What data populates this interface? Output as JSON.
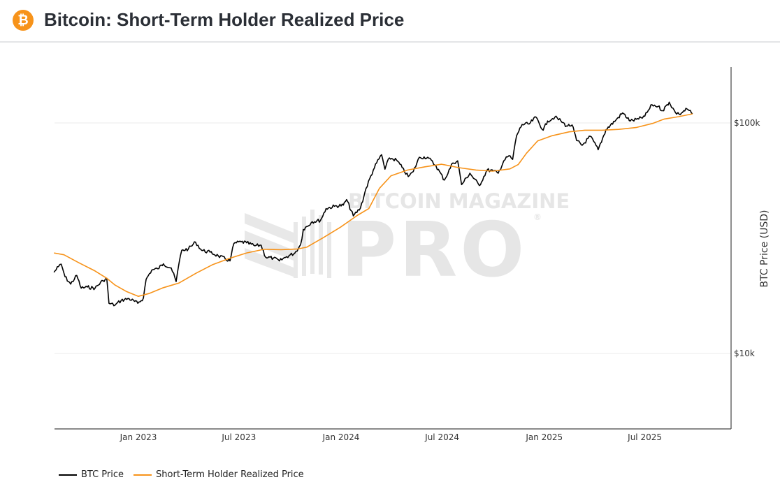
{
  "header": {
    "title": "Bitcoin: Short-Term Holder Realized Price",
    "logo_glyph": "₿",
    "logo_icon": "bitcoin-logo-icon"
  },
  "watermark": {
    "line1": "BITCOIN MAGAZINE",
    "line2": "PRO",
    "registered": "®"
  },
  "colors": {
    "btc_price": "#000000",
    "sth_realized": "#f7931a",
    "accent": "#f7931a",
    "title": "#2b2f36"
  },
  "chart_data": {
    "type": "line",
    "title": "Bitcoin: Short-Term Holder Realized Price",
    "xlabel": "",
    "ylabel": "BTC Price (USD)",
    "yscale": "log",
    "ylim": [
      4700,
      175000
    ],
    "xlim": [
      "2022-08-02",
      "2025-11-15"
    ],
    "grid": true,
    "x_ticks": [
      {
        "date": "2023-01-01",
        "label": "Jan 2023"
      },
      {
        "date": "2023-07-01",
        "label": "Jul 2023"
      },
      {
        "date": "2024-01-01",
        "label": "Jan 2024"
      },
      {
        "date": "2024-07-01",
        "label": "Jul 2024"
      },
      {
        "date": "2025-01-01",
        "label": "Jan 2025"
      },
      {
        "date": "2025-07-01",
        "label": "Jul 2025"
      }
    ],
    "y_ticks": [
      {
        "value": 100000,
        "label": "$100k"
      },
      {
        "value": 10000,
        "label": "$10k"
      }
    ],
    "y_axis_position": "right",
    "legend_position": "bottom-left",
    "series": [
      {
        "name": "BTC Price",
        "color": "#000000",
        "points": [
          [
            "2022-08-02",
            22500
          ],
          [
            "2022-08-10",
            23800
          ],
          [
            "2022-08-15",
            24400
          ],
          [
            "2022-08-22",
            21500
          ],
          [
            "2022-09-01",
            20000
          ],
          [
            "2022-09-12",
            21800
          ],
          [
            "2022-09-20",
            19200
          ],
          [
            "2022-10-01",
            19400
          ],
          [
            "2022-10-15",
            19200
          ],
          [
            "2022-10-29",
            20700
          ],
          [
            "2022-11-05",
            21200
          ],
          [
            "2022-11-09",
            16500
          ],
          [
            "2022-11-20",
            16200
          ],
          [
            "2022-12-01",
            17000
          ],
          [
            "2022-12-15",
            17300
          ],
          [
            "2022-12-31",
            16500
          ],
          [
            "2023-01-10",
            17400
          ],
          [
            "2023-01-15",
            21000
          ],
          [
            "2023-01-25",
            23000
          ],
          [
            "2023-02-05",
            23300
          ],
          [
            "2023-02-15",
            24500
          ],
          [
            "2023-03-01",
            23500
          ],
          [
            "2023-03-10",
            20500
          ],
          [
            "2023-03-15",
            24500
          ],
          [
            "2023-03-20",
            28000
          ],
          [
            "2023-04-01",
            28400
          ],
          [
            "2023-04-14",
            30400
          ],
          [
            "2023-04-25",
            28000
          ],
          [
            "2023-05-10",
            27500
          ],
          [
            "2023-05-25",
            26500
          ],
          [
            "2023-06-15",
            25200
          ],
          [
            "2023-06-22",
            30000
          ],
          [
            "2023-07-05",
            30500
          ],
          [
            "2023-07-15",
            30200
          ],
          [
            "2023-07-30",
            29300
          ],
          [
            "2023-08-10",
            29500
          ],
          [
            "2023-08-18",
            26200
          ],
          [
            "2023-09-01",
            25900
          ],
          [
            "2023-09-12",
            25200
          ],
          [
            "2023-09-25",
            26300
          ],
          [
            "2023-10-10",
            27300
          ],
          [
            "2023-10-20",
            29600
          ],
          [
            "2023-10-25",
            34500
          ],
          [
            "2023-11-10",
            37300
          ],
          [
            "2023-11-25",
            37800
          ],
          [
            "2023-12-05",
            42500
          ],
          [
            "2023-12-20",
            43500
          ],
          [
            "2024-01-05",
            44000
          ],
          [
            "2024-01-11",
            46500
          ],
          [
            "2024-01-23",
            39500
          ],
          [
            "2024-02-05",
            42800
          ],
          [
            "2024-02-15",
            52000
          ],
          [
            "2024-02-28",
            62500
          ],
          [
            "2024-03-05",
            67000
          ],
          [
            "2024-03-14",
            72800
          ],
          [
            "2024-03-20",
            63000
          ],
          [
            "2024-03-28",
            70500
          ],
          [
            "2024-04-10",
            69000
          ],
          [
            "2024-04-20",
            64000
          ],
          [
            "2024-05-01",
            58500
          ],
          [
            "2024-05-10",
            61500
          ],
          [
            "2024-05-21",
            71000
          ],
          [
            "2024-06-05",
            71000
          ],
          [
            "2024-06-20",
            65000
          ],
          [
            "2024-07-05",
            56500
          ],
          [
            "2024-07-20",
            67000
          ],
          [
            "2024-07-29",
            68500
          ],
          [
            "2024-08-05",
            54000
          ],
          [
            "2024-08-20",
            60500
          ],
          [
            "2024-09-06",
            53500
          ],
          [
            "2024-09-20",
            62500
          ],
          [
            "2024-10-01",
            62000
          ],
          [
            "2024-10-10",
            60500
          ],
          [
            "2024-10-20",
            68500
          ],
          [
            "2024-10-29",
            72000
          ],
          [
            "2024-11-05",
            69500
          ],
          [
            "2024-11-12",
            88000
          ],
          [
            "2024-11-22",
            98500
          ],
          [
            "2024-12-05",
            99000
          ],
          [
            "2024-12-17",
            106000
          ],
          [
            "2024-12-30",
            93000
          ],
          [
            "2025-01-07",
            102000
          ],
          [
            "2025-01-20",
            106000
          ],
          [
            "2025-01-31",
            102000
          ],
          [
            "2025-02-10",
            97000
          ],
          [
            "2025-02-20",
            98000
          ],
          [
            "2025-02-28",
            84000
          ],
          [
            "2025-03-10",
            80000
          ],
          [
            "2025-03-25",
            87500
          ],
          [
            "2025-04-08",
            76500
          ],
          [
            "2025-04-22",
            93500
          ],
          [
            "2025-05-10",
            103000
          ],
          [
            "2025-05-22",
            110500
          ],
          [
            "2025-06-05",
            102000
          ],
          [
            "2025-06-20",
            104000
          ],
          [
            "2025-07-01",
            107000
          ],
          [
            "2025-07-14",
            120000
          ],
          [
            "2025-07-25",
            118000
          ],
          [
            "2025-08-02",
            113000
          ],
          [
            "2025-08-14",
            123000
          ],
          [
            "2025-08-25",
            111000
          ],
          [
            "2025-09-01",
            109000
          ],
          [
            "2025-09-15",
            115000
          ],
          [
            "2025-09-25",
            109500
          ]
        ]
      },
      {
        "name": "Short-Term Holder Realized Price",
        "color": "#f7931a",
        "points": [
          [
            "2022-08-02",
            27300
          ],
          [
            "2022-08-20",
            26800
          ],
          [
            "2022-09-15",
            24800
          ],
          [
            "2022-10-15",
            22800
          ],
          [
            "2022-11-05",
            21200
          ],
          [
            "2022-11-20",
            19800
          ],
          [
            "2022-12-10",
            18600
          ],
          [
            "2023-01-01",
            17700
          ],
          [
            "2023-01-20",
            18200
          ],
          [
            "2023-02-15",
            19300
          ],
          [
            "2023-03-15",
            20200
          ],
          [
            "2023-04-15",
            22300
          ],
          [
            "2023-05-15",
            24300
          ],
          [
            "2023-06-15",
            25900
          ],
          [
            "2023-07-15",
            27300
          ],
          [
            "2023-08-15",
            28300
          ],
          [
            "2023-09-15",
            28200
          ],
          [
            "2023-10-15",
            28400
          ],
          [
            "2023-10-31",
            28900
          ],
          [
            "2023-11-30",
            31800
          ],
          [
            "2023-12-31",
            35300
          ],
          [
            "2024-01-31",
            39800
          ],
          [
            "2024-02-20",
            42500
          ],
          [
            "2024-03-10",
            52000
          ],
          [
            "2024-03-31",
            59000
          ],
          [
            "2024-04-30",
            62500
          ],
          [
            "2024-05-31",
            64500
          ],
          [
            "2024-06-30",
            66200
          ],
          [
            "2024-07-31",
            64000
          ],
          [
            "2024-08-31",
            62500
          ],
          [
            "2024-09-30",
            61800
          ],
          [
            "2024-10-31",
            63200
          ],
          [
            "2024-11-15",
            66000
          ],
          [
            "2024-11-30",
            74000
          ],
          [
            "2024-12-20",
            83500
          ],
          [
            "2025-01-15",
            88000
          ],
          [
            "2025-02-15",
            91500
          ],
          [
            "2025-03-15",
            93000
          ],
          [
            "2025-04-15",
            93000
          ],
          [
            "2025-05-15",
            93800
          ],
          [
            "2025-06-15",
            95500
          ],
          [
            "2025-07-15",
            99500
          ],
          [
            "2025-08-05",
            104000
          ],
          [
            "2025-08-31",
            106500
          ],
          [
            "2025-09-25",
            109500
          ]
        ]
      }
    ]
  },
  "legend": [
    {
      "label": "BTC Price",
      "color": "#000000"
    },
    {
      "label": "Short-Term Holder Realized Price",
      "color": "#f7931a"
    }
  ]
}
